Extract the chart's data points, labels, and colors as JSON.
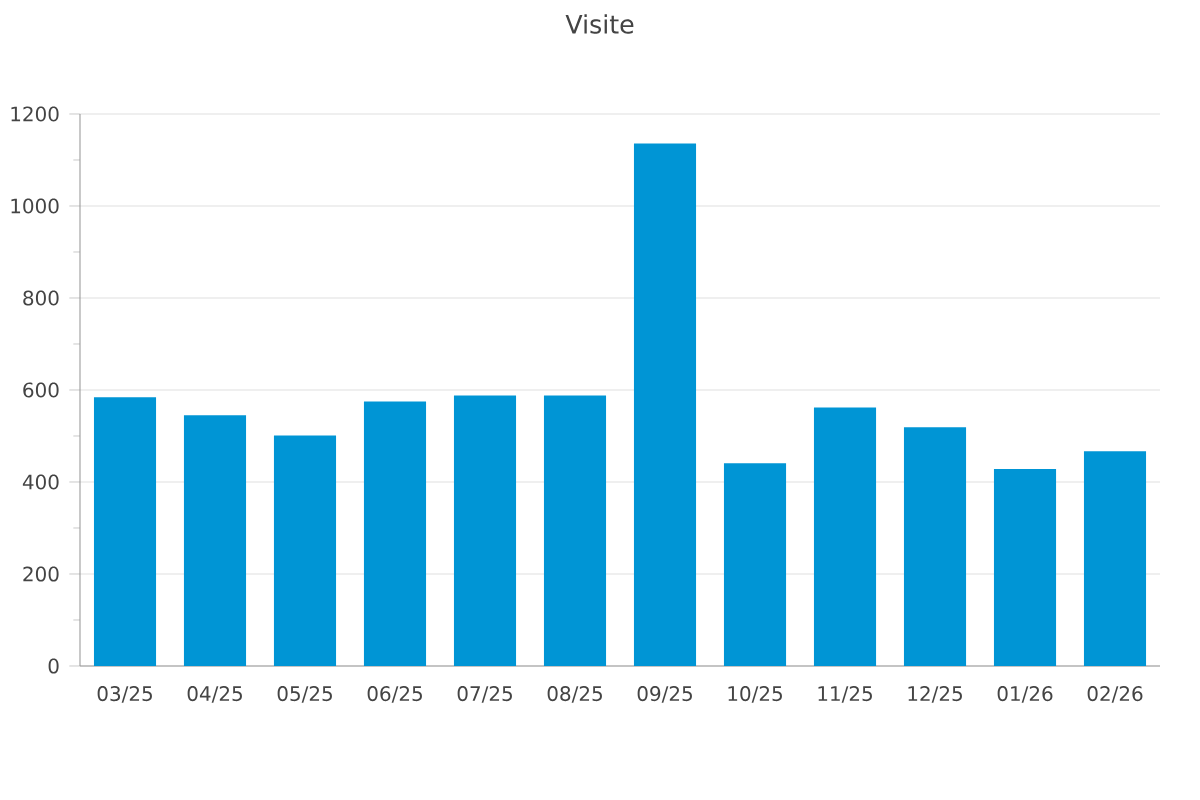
{
  "chart_data": {
    "type": "bar",
    "title": "Visite",
    "categories": [
      "03/25",
      "04/25",
      "05/25",
      "06/25",
      "07/25",
      "08/25",
      "09/25",
      "10/25",
      "11/25",
      "12/25",
      "01/26",
      "02/26"
    ],
    "values": [
      584,
      545,
      501,
      575,
      588,
      588,
      1136,
      441,
      562,
      519,
      428,
      467
    ],
    "color": "#0095d5",
    "ylim": [
      0,
      1200
    ],
    "yticks": [
      0,
      200,
      400,
      600,
      800,
      1000,
      1200
    ],
    "grid": "y"
  }
}
